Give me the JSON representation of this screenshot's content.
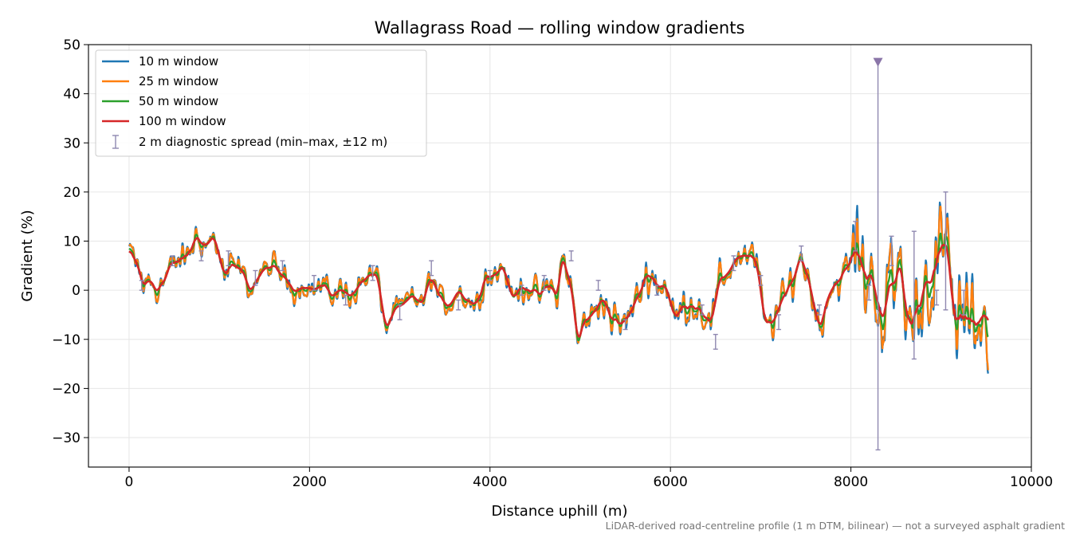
{
  "chart_data": {
    "type": "line",
    "title": "Wallagrass Road — rolling window gradients",
    "xlabel": "Distance uphill (m)",
    "ylabel": "Gradient (%)",
    "xlim": [
      -450,
      10000
    ],
    "ylim": [
      -36,
      50
    ],
    "x_ticks": [
      0,
      2000,
      4000,
      6000,
      8000,
      10000
    ],
    "x_tick_labels": [
      "0",
      "2000",
      "4000",
      "6000",
      "8000",
      "10000"
    ],
    "y_ticks": [
      -30,
      -20,
      -10,
      0,
      10,
      20,
      30,
      40,
      50
    ],
    "y_tick_labels": [
      "−30",
      "−20",
      "−10",
      "0",
      "10",
      "20",
      "30",
      "40",
      "50"
    ],
    "grid": true,
    "legend_position": "top-left",
    "footnote": "LiDAR-derived road-centreline profile (1 m DTM, bilinear) — not a surveyed asphalt gradient",
    "baseline": [
      [
        0,
        8
      ],
      [
        100,
        5
      ],
      [
        150,
        1
      ],
      [
        250,
        2
      ],
      [
        300,
        0
      ],
      [
        400,
        2
      ],
      [
        450,
        5
      ],
      [
        550,
        6
      ],
      [
        650,
        7
      ],
      [
        750,
        11
      ],
      [
        850,
        9
      ],
      [
        950,
        11
      ],
      [
        1050,
        3
      ],
      [
        1150,
        5
      ],
      [
        1250,
        4
      ],
      [
        1350,
        0
      ],
      [
        1450,
        3
      ],
      [
        1550,
        5
      ],
      [
        1650,
        4
      ],
      [
        1750,
        2
      ],
      [
        1850,
        0
      ],
      [
        1950,
        1
      ],
      [
        2050,
        0
      ],
      [
        2150,
        1
      ],
      [
        2250,
        -1
      ],
      [
        2350,
        0
      ],
      [
        2450,
        -1
      ],
      [
        2550,
        1
      ],
      [
        2650,
        3
      ],
      [
        2750,
        3
      ],
      [
        2850,
        -8
      ],
      [
        2950,
        -4
      ],
      [
        3050,
        -3
      ],
      [
        3150,
        -1
      ],
      [
        3250,
        -3
      ],
      [
        3350,
        3
      ],
      [
        3450,
        -2
      ],
      [
        3550,
        -3
      ],
      [
        3650,
        0
      ],
      [
        3750,
        -2
      ],
      [
        3850,
        -3
      ],
      [
        3950,
        3
      ],
      [
        4050,
        3
      ],
      [
        4150,
        5
      ],
      [
        4250,
        -2
      ],
      [
        4350,
        1
      ],
      [
        4450,
        0
      ],
      [
        4550,
        -1
      ],
      [
        4650,
        1
      ],
      [
        4750,
        -1
      ],
      [
        4800,
        7
      ],
      [
        4900,
        1
      ],
      [
        4975,
        -11
      ],
      [
        5050,
        -6
      ],
      [
        5150,
        -5
      ],
      [
        5250,
        -1
      ],
      [
        5350,
        -6
      ],
      [
        5450,
        -7
      ],
      [
        5550,
        -5
      ],
      [
        5650,
        -1
      ],
      [
        5750,
        4
      ],
      [
        5850,
        1
      ],
      [
        5950,
        1
      ],
      [
        6050,
        -6
      ],
      [
        6150,
        -3
      ],
      [
        6250,
        -3
      ],
      [
        6350,
        -4
      ],
      [
        6450,
        -7
      ],
      [
        6550,
        2
      ],
      [
        6650,
        4
      ],
      [
        6750,
        7
      ],
      [
        6850,
        7
      ],
      [
        6950,
        6
      ],
      [
        7050,
        -7
      ],
      [
        7150,
        -6
      ],
      [
        7250,
        -2
      ],
      [
        7350,
        2
      ],
      [
        7450,
        7
      ],
      [
        7550,
        1
      ],
      [
        7650,
        -8
      ],
      [
        7750,
        -1
      ],
      [
        7850,
        2
      ],
      [
        7950,
        4
      ],
      [
        8050,
        8
      ],
      [
        8150,
        4
      ],
      [
        8250,
        2
      ],
      [
        8350,
        -5
      ],
      [
        8450,
        0
      ],
      [
        8550,
        5
      ],
      [
        8650,
        -8
      ],
      [
        8750,
        -3
      ],
      [
        8850,
        3
      ],
      [
        8950,
        5
      ],
      [
        9050,
        10
      ],
      [
        9150,
        -6
      ],
      [
        9250,
        -6
      ],
      [
        9350,
        -7
      ],
      [
        9450,
        -5
      ],
      [
        9520,
        -4
      ]
    ],
    "series": [
      {
        "name": "10 m window",
        "color": "#1f77b4",
        "window_m": 10
      },
      {
        "name": "25 m window",
        "color": "#ff7f0e",
        "window_m": 25
      },
      {
        "name": "50 m window",
        "color": "#2ca02c",
        "window_m": 50
      },
      {
        "name": "100 m window",
        "color": "#d62728",
        "window_m": 100
      }
    ],
    "spread": {
      "name": "2 m diagnostic spread (min–max, ±12 m)",
      "color": "#8f88b0",
      "bars": [
        [
          140,
          0,
          2
        ],
        [
          480,
          5,
          7
        ],
        [
          800,
          6,
          8
        ],
        [
          1100,
          5,
          8
        ],
        [
          1400,
          1,
          4
        ],
        [
          1700,
          4,
          6
        ],
        [
          2050,
          0,
          3
        ],
        [
          2400,
          -3,
          -1
        ],
        [
          2700,
          2,
          5
        ],
        [
          3000,
          -6,
          -3
        ],
        [
          3350,
          3,
          6
        ],
        [
          3650,
          -4,
          -2
        ],
        [
          4000,
          2,
          4
        ],
        [
          4350,
          -1,
          1
        ],
        [
          4600,
          0,
          3
        ],
        [
          4900,
          6,
          8
        ],
        [
          5200,
          0,
          2
        ],
        [
          5500,
          -8,
          -6
        ],
        [
          5850,
          -1,
          1
        ],
        [
          6350,
          -5,
          -3
        ],
        [
          6500,
          -12,
          -9
        ],
        [
          6700,
          4,
          7
        ],
        [
          7000,
          1,
          3
        ],
        [
          7200,
          -8,
          -5
        ],
        [
          7450,
          6,
          9
        ],
        [
          7650,
          -5,
          -3
        ],
        [
          8050,
          8,
          14
        ],
        [
          8200,
          -2,
          1
        ],
        [
          8450,
          5,
          11
        ],
        [
          8700,
          -14,
          12
        ],
        [
          8950,
          -3,
          0
        ],
        [
          9050,
          -4,
          20
        ],
        [
          9250,
          -5,
          0
        ]
      ],
      "outlier": {
        "x": 8300,
        "min": -32.5,
        "max": 46.5
      }
    }
  }
}
